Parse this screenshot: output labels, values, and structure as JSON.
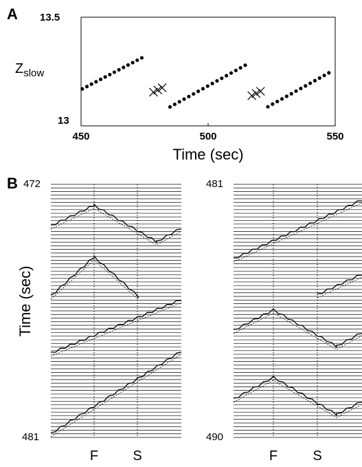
{
  "panelA": {
    "letter": "A",
    "ylabel_main": "Z",
    "ylabel_sub": "slow",
    "xlabel": "Time (sec)",
    "xlim": [
      450,
      550
    ],
    "ylim": [
      13,
      13.5
    ],
    "x_ticks": [
      "450",
      "500",
      "550"
    ],
    "y_ticks": [
      "13",
      "13.5"
    ]
  },
  "panelB": {
    "letter": "B",
    "ylabel": "Time (sec)",
    "left": {
      "top_label": "472",
      "bottom_label": "481",
      "f_label": "F",
      "s_label": "S"
    },
    "right": {
      "top_label": "481",
      "bottom_label": "490",
      "f_label": "F",
      "s_label": "S"
    }
  },
  "chart_data": [
    {
      "type": "scatter",
      "title": "",
      "xlabel": "Time (sec)",
      "ylabel": "Z slow",
      "xlim": [
        450,
        550
      ],
      "ylim": [
        13,
        13.5
      ],
      "grid": false,
      "series": [
        {
          "marker": "dot",
          "points": [
            [
              450.5,
              13.17
            ],
            [
              452.3,
              13.181
            ],
            [
              454.1,
              13.192
            ],
            [
              455.9,
              13.203
            ],
            [
              457.7,
              13.214
            ],
            [
              459.5,
              13.225
            ],
            [
              461.3,
              13.236
            ],
            [
              463.1,
              13.247
            ],
            [
              464.9,
              13.258
            ],
            [
              466.7,
              13.269
            ],
            [
              468.5,
              13.28
            ],
            [
              470.3,
              13.291
            ],
            [
              472.1,
              13.302
            ],
            [
              473.9,
              13.313
            ]
          ]
        },
        {
          "marker": "cross",
          "points": [
            [
              478.5,
              13.155
            ],
            [
              480.2,
              13.165
            ],
            [
              481.9,
              13.175
            ]
          ]
        },
        {
          "marker": "dot",
          "points": [
            [
              485.0,
              13.087
            ],
            [
              486.85,
              13.099
            ],
            [
              488.7,
              13.111
            ],
            [
              490.55,
              13.123
            ],
            [
              492.4,
              13.135
            ],
            [
              494.25,
              13.147
            ],
            [
              496.1,
              13.159
            ],
            [
              497.95,
              13.171
            ],
            [
              499.8,
              13.183
            ],
            [
              501.65,
              13.195
            ],
            [
              503.5,
              13.207
            ],
            [
              505.35,
              13.219
            ],
            [
              507.2,
              13.231
            ],
            [
              509.05,
              13.243
            ],
            [
              510.9,
              13.255
            ],
            [
              512.75,
              13.267
            ],
            [
              514.6,
              13.279
            ]
          ]
        },
        {
          "marker": "cross",
          "points": [
            [
              517.2,
              13.139
            ],
            [
              518.9,
              13.149
            ],
            [
              520.6,
              13.159
            ]
          ]
        },
        {
          "marker": "dot",
          "points": [
            [
              523.5,
              13.088
            ],
            [
              525.35,
              13.1
            ],
            [
              527.2,
              13.112
            ],
            [
              529.05,
              13.124
            ],
            [
              530.9,
              13.136
            ],
            [
              532.75,
              13.148
            ],
            [
              534.6,
              13.16
            ],
            [
              536.45,
              13.172
            ],
            [
              538.3,
              13.184
            ],
            [
              540.15,
              13.196
            ],
            [
              542.0,
              13.208
            ],
            [
              543.85,
              13.22
            ],
            [
              545.7,
              13.232
            ],
            [
              547.5,
              13.244
            ]
          ]
        }
      ]
    }
  ]
}
